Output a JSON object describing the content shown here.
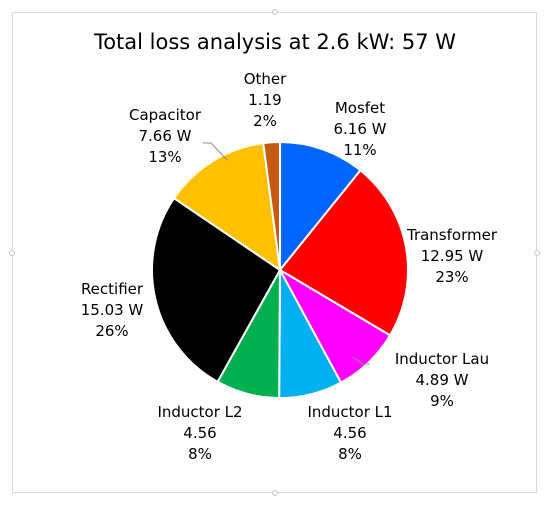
{
  "chart_data": {
    "type": "pie",
    "title": "Total loss analysis at 2.6 kW: 57 W",
    "slices": [
      {
        "name": "Mosfet",
        "value_text": "6.16 W",
        "percent_text": "11%",
        "value": 6.16,
        "color": "#0066ff"
      },
      {
        "name": "Transformer",
        "value_text": "12.95 W",
        "percent_text": "23%",
        "value": 12.95,
        "color": "#ff0000"
      },
      {
        "name": "Inductor Lau",
        "value_text": "4.89 W",
        "percent_text": "9%",
        "value": 4.89,
        "color": "#ff00ff"
      },
      {
        "name": "Inductor L1",
        "value_text": "4.56",
        "percent_text": "8%",
        "value": 4.56,
        "color": "#00b0f0"
      },
      {
        "name": "Inductor L2",
        "value_text": "4.56",
        "percent_text": "8%",
        "value": 4.56,
        "color": "#00b050"
      },
      {
        "name": "Rectifier",
        "value_text": "15.03 W",
        "percent_text": "26%",
        "value": 15.03,
        "color": "#000000"
      },
      {
        "name": "Capacitor",
        "value_text": "7.66 W",
        "percent_text": "13%",
        "value": 7.66,
        "color": "#ffc000"
      },
      {
        "name": "Other",
        "value_text": "1.19",
        "percent_text": "2%",
        "value": 1.19,
        "color": "#c55a11"
      }
    ]
  }
}
